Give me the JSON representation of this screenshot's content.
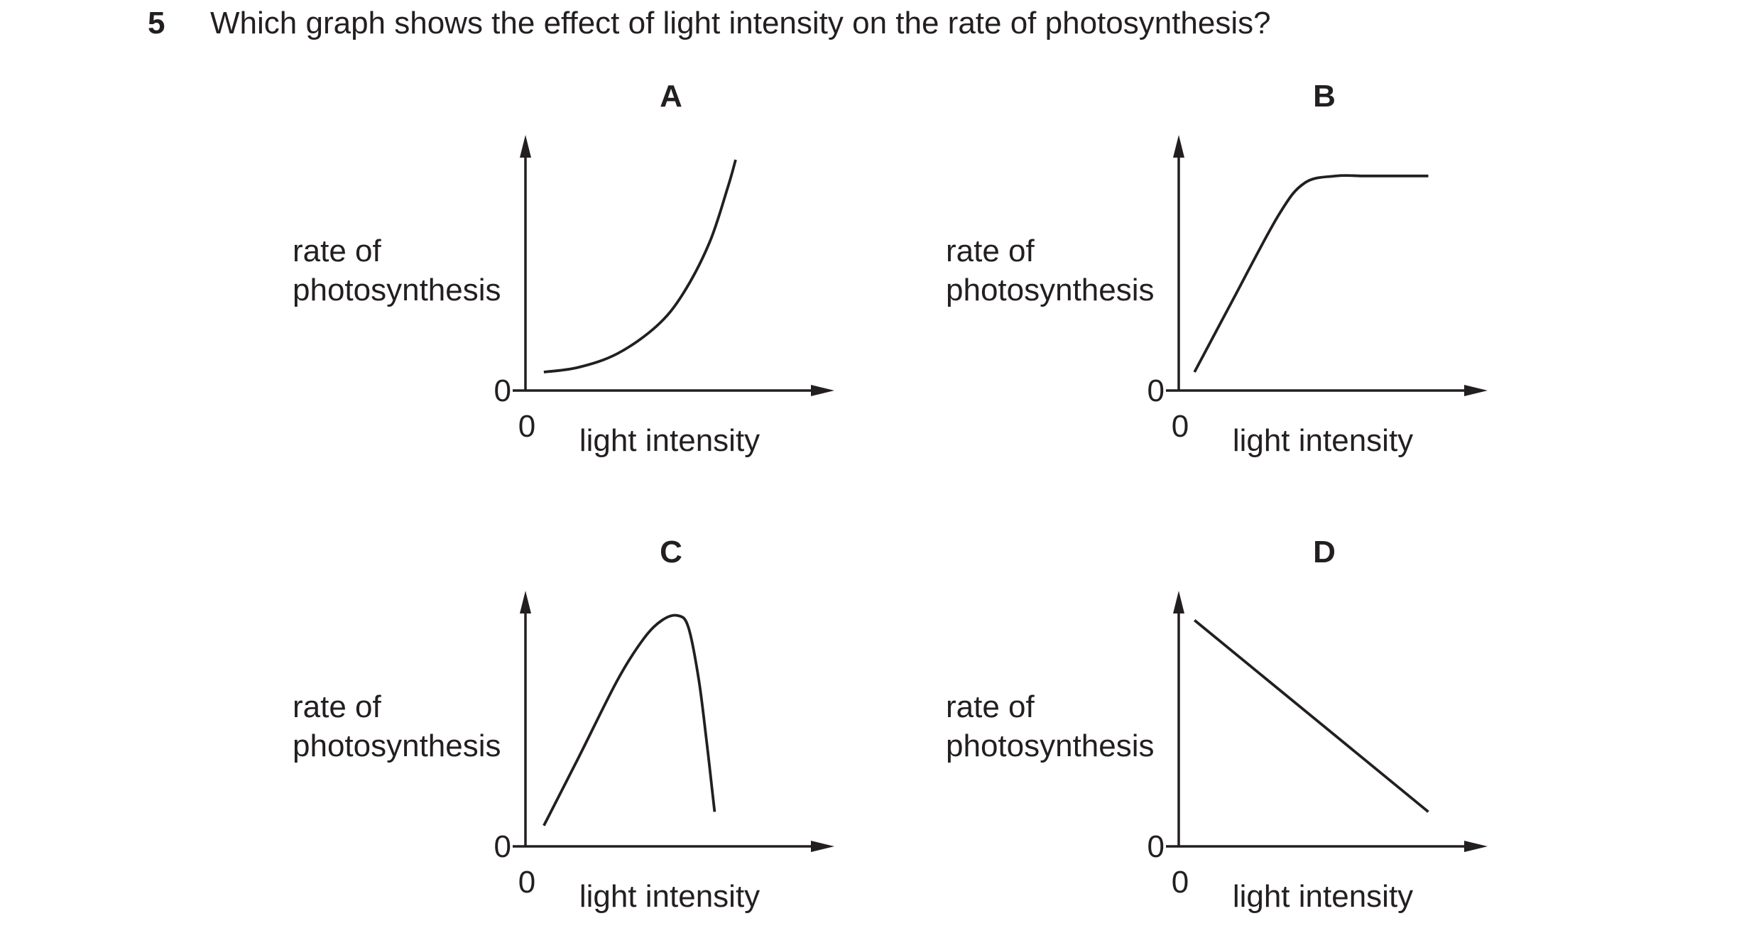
{
  "question": {
    "number": "5",
    "text": "Which graph shows the effect of light intensity on the rate of photosynthesis?"
  },
  "chart_data": [
    {
      "type": "line",
      "label": "A",
      "xlabel": "light intensity",
      "ylabel_lines": [
        "rate of",
        "photosynthesis"
      ],
      "x_origin_label": "0",
      "y_origin_label": "0",
      "x": [
        0.07,
        0.2,
        0.35,
        0.5,
        0.6,
        0.7,
        0.77,
        0.8
      ],
      "y": [
        0.08,
        0.1,
        0.16,
        0.28,
        0.42,
        0.64,
        0.88,
        1.0
      ]
    },
    {
      "type": "line",
      "label": "B",
      "xlabel": "light intensity",
      "ylabel_lines": [
        "rate of",
        "photosynthesis"
      ],
      "x_origin_label": "0",
      "y_origin_label": "0",
      "x": [
        0.06,
        0.2,
        0.38,
        0.48,
        0.6,
        0.7,
        0.8,
        0.9,
        0.95
      ],
      "y": [
        0.08,
        0.38,
        0.76,
        0.9,
        0.93,
        0.93,
        0.93,
        0.93,
        0.93
      ]
    },
    {
      "type": "line",
      "label": "C",
      "xlabel": "light intensity",
      "ylabel_lines": [
        "rate of",
        "photosynthesis"
      ],
      "x_origin_label": "0",
      "y_origin_label": "0",
      "x": [
        0.07,
        0.2,
        0.35,
        0.45,
        0.52,
        0.58,
        0.62,
        0.66,
        0.69,
        0.71,
        0.72
      ],
      "y": [
        0.09,
        0.38,
        0.72,
        0.9,
        0.98,
        1.0,
        0.95,
        0.72,
        0.45,
        0.25,
        0.15
      ]
    },
    {
      "type": "line",
      "label": "D",
      "xlabel": "light intensity",
      "ylabel_lines": [
        "rate of",
        "photosynthesis"
      ],
      "x_origin_label": "0",
      "y_origin_label": "0",
      "x": [
        0.06,
        0.95
      ],
      "y": [
        0.98,
        0.15
      ]
    }
  ]
}
